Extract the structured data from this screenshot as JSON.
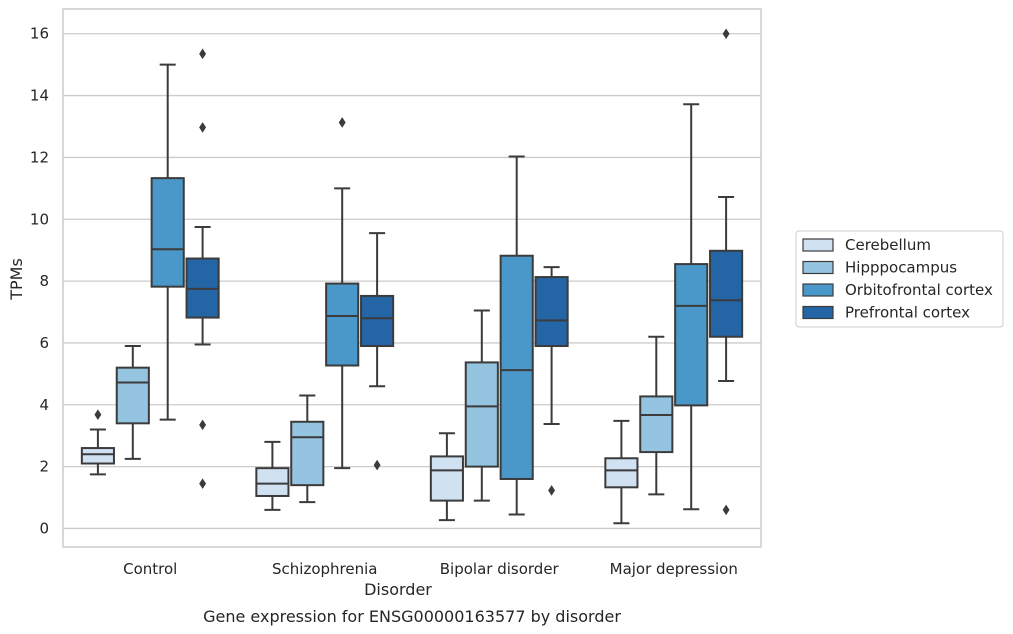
{
  "chart_data": {
    "type": "boxplot",
    "caption": "Gene expression for ENSG00000163577 by disorder",
    "xlabel": "Disorder",
    "ylabel": "TPMs",
    "ylim": [
      -0.6,
      16.8
    ],
    "yticks": [
      0,
      2,
      4,
      6,
      8,
      10,
      12,
      14,
      16
    ],
    "grid": true,
    "legend_position": "right",
    "categories": [
      "Control",
      "Schizophrenia",
      "Bipolar disorder",
      "Major depression"
    ],
    "series": [
      {
        "name": "Cerebellum",
        "color": "#d0e1f2",
        "boxes": [
          {
            "whisker_low": 1.75,
            "q1": 2.1,
            "median": 2.4,
            "q3": 2.6,
            "whisker_high": 3.2,
            "outliers": [
              3.68
            ]
          },
          {
            "whisker_low": 0.6,
            "q1": 1.05,
            "median": 1.45,
            "q3": 1.95,
            "whisker_high": 2.8,
            "outliers": []
          },
          {
            "whisker_low": 0.27,
            "q1": 0.9,
            "median": 1.88,
            "q3": 2.33,
            "whisker_high": 3.08,
            "outliers": []
          },
          {
            "whisker_low": 0.17,
            "q1": 1.33,
            "median": 1.88,
            "q3": 2.27,
            "whisker_high": 3.48,
            "outliers": []
          }
        ]
      },
      {
        "name": "Hipppocampus",
        "color": "#94c4df",
        "boxes": [
          {
            "whisker_low": 2.25,
            "q1": 3.4,
            "median": 4.72,
            "q3": 5.2,
            "whisker_high": 5.9,
            "outliers": []
          },
          {
            "whisker_low": 0.85,
            "q1": 1.4,
            "median": 2.95,
            "q3": 3.45,
            "whisker_high": 4.3,
            "outliers": []
          },
          {
            "whisker_low": 0.9,
            "q1": 2.0,
            "median": 3.95,
            "q3": 5.37,
            "whisker_high": 7.05,
            "outliers": []
          },
          {
            "whisker_low": 1.1,
            "q1": 2.47,
            "median": 3.67,
            "q3": 4.27,
            "whisker_high": 6.2,
            "outliers": []
          }
        ]
      },
      {
        "name": "Orbitofrontal cortex",
        "color": "#4a98c9",
        "boxes": [
          {
            "whisker_low": 3.52,
            "q1": 7.82,
            "median": 9.03,
            "q3": 11.33,
            "whisker_high": 15.0,
            "outliers": []
          },
          {
            "whisker_low": 1.95,
            "q1": 5.27,
            "median": 6.87,
            "q3": 7.92,
            "whisker_high": 11.0,
            "outliers": [
              13.13
            ]
          },
          {
            "whisker_low": 0.45,
            "q1": 1.6,
            "median": 5.12,
            "q3": 8.82,
            "whisker_high": 12.03,
            "outliers": []
          },
          {
            "whisker_low": 0.62,
            "q1": 3.98,
            "median": 7.2,
            "q3": 8.55,
            "whisker_high": 13.72,
            "outliers": []
          }
        ]
      },
      {
        "name": "Prefrontal cortex",
        "color": "#2465a6",
        "boxes": [
          {
            "whisker_low": 5.95,
            "q1": 6.82,
            "median": 7.75,
            "q3": 8.73,
            "whisker_high": 9.75,
            "outliers": [
              15.35,
              12.97,
              3.35,
              1.45
            ]
          },
          {
            "whisker_low": 4.6,
            "q1": 5.9,
            "median": 6.8,
            "q3": 7.52,
            "whisker_high": 9.55,
            "outliers": [
              2.05
            ]
          },
          {
            "whisker_low": 3.38,
            "q1": 5.9,
            "median": 6.73,
            "q3": 8.13,
            "whisker_high": 8.45,
            "outliers": [
              1.23
            ]
          },
          {
            "whisker_low": 4.77,
            "q1": 6.2,
            "median": 7.38,
            "q3": 8.98,
            "whisker_high": 10.72,
            "outliers": [
              16.0,
              0.6
            ]
          }
        ]
      }
    ]
  }
}
